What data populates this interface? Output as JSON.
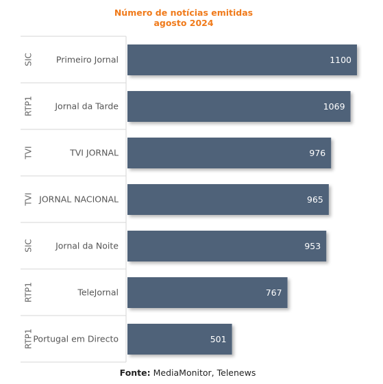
{
  "chart_data": {
    "type": "bar",
    "orientation": "horizontal",
    "title": "Número de notícias emitidas",
    "subtitle": "agosto 2024",
    "categories": [
      {
        "group": "SIC",
        "label": "Primeiro Jornal"
      },
      {
        "group": "RTP1",
        "label": "Jornal da Tarde"
      },
      {
        "group": "TVI",
        "label": "TVI JORNAL"
      },
      {
        "group": "TVI",
        "label": "JORNAL NACIONAL"
      },
      {
        "group": "SIC",
        "label": "Jornal da Noite"
      },
      {
        "group": "RTP1",
        "label": "TeleJornal"
      },
      {
        "group": "RTP1",
        "label": "Portugal em Directo"
      }
    ],
    "values": [
      1100,
      1069,
      976,
      965,
      953,
      767,
      501
    ],
    "xlim": [
      0,
      1100
    ],
    "grid": false,
    "legend": "none",
    "colors": {
      "bar": "#4f6279",
      "title": "#f07a1a",
      "label": "#555555",
      "group": "#666666",
      "value": "#ffffff",
      "border": "#d6d6d6"
    }
  },
  "source": {
    "prefix": "Fonte:",
    "text": " MediaMonitor, Telenews"
  }
}
